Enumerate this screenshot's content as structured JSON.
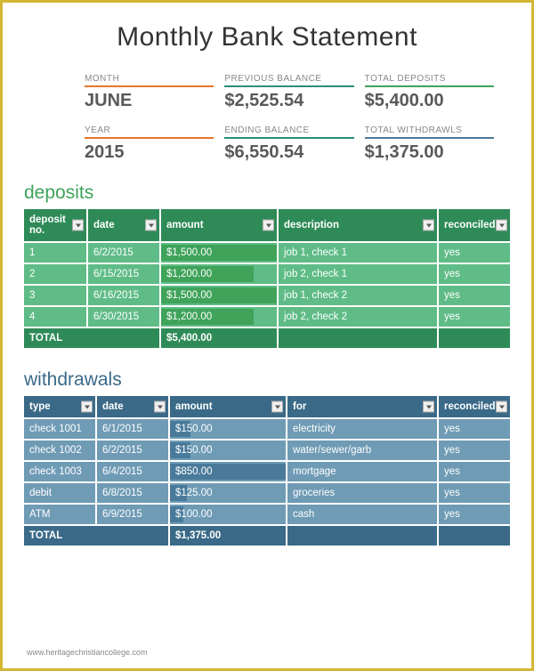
{
  "title": "Monthly Bank Statement",
  "summary": {
    "row1": [
      {
        "label": "MONTH",
        "value": "JUNE",
        "cls": "bc-orange"
      },
      {
        "label": "PREVIOUS BALANCE",
        "value": "$2,525.54",
        "cls": "bc-teal"
      },
      {
        "label": "TOTAL DEPOSITS",
        "value": "$5,400.00",
        "cls": "bc-green"
      }
    ],
    "row2": [
      {
        "label": "YEAR",
        "value": "2015",
        "cls": "bc-orange"
      },
      {
        "label": "ENDING BALANCE",
        "value": "$6,550.54",
        "cls": "bc-teal"
      },
      {
        "label": "TOTAL WITHDRAWLS",
        "value": "$1,375.00",
        "cls": "bc-blue"
      }
    ]
  },
  "deposits": {
    "title": "deposits",
    "title_color": "#3fa35a",
    "head_bg": "#2e8b57",
    "row_bg": "#5fbc86",
    "bar_color": "#3fa35a",
    "max_amount": 1500,
    "columns": [
      "deposit no.",
      "date",
      "amount",
      "description",
      "reconciled"
    ],
    "rows": [
      {
        "no": "1",
        "date": "6/2/2015",
        "amount": 1500,
        "amount_str": "$1,500.00",
        "desc": "job 1, check 1",
        "rec": "yes"
      },
      {
        "no": "2",
        "date": "6/15/2015",
        "amount": 1200,
        "amount_str": "$1,200.00",
        "desc": "job 2, check 1",
        "rec": "yes"
      },
      {
        "no": "3",
        "date": "6/16/2015",
        "amount": 1500,
        "amount_str": "$1,500.00",
        "desc": "job 1, check 2",
        "rec": "yes"
      },
      {
        "no": "4",
        "date": "6/30/2015",
        "amount": 1200,
        "amount_str": "$1,200.00",
        "desc": "job 2, check 2",
        "rec": "yes"
      }
    ],
    "total_label": "TOTAL",
    "total": "$5,400.00"
  },
  "withdrawals": {
    "title": "withdrawals",
    "title_color": "#3a6a88",
    "head_bg": "#3a6a88",
    "row_bg": "#6f9bb5",
    "bar_color": "#4a7a9a",
    "max_amount": 850,
    "columns": [
      "type",
      "date",
      "amount",
      "for",
      "reconciled"
    ],
    "rows": [
      {
        "type": "check 1001",
        "date": "6/1/2015",
        "amount": 150,
        "amount_str": "$150.00",
        "for": "electricity",
        "rec": "yes"
      },
      {
        "type": "check 1002",
        "date": "6/2/2015",
        "amount": 150,
        "amount_str": "$150.00",
        "for": "water/sewer/garb",
        "rec": "yes"
      },
      {
        "type": "check 1003",
        "date": "6/4/2015",
        "amount": 850,
        "amount_str": "$850.00",
        "for": "mortgage",
        "rec": "yes"
      },
      {
        "type": "debit",
        "date": "6/8/2015",
        "amount": 125,
        "amount_str": "$125.00",
        "for": "groceries",
        "rec": "yes"
      },
      {
        "type": "ATM",
        "date": "6/9/2015",
        "amount": 100,
        "amount_str": "$100.00",
        "for": "cash",
        "rec": "yes"
      }
    ],
    "total_label": "TOTAL",
    "total": "$1,375.00"
  },
  "watermark": "www.heritagechristiancollege.com"
}
